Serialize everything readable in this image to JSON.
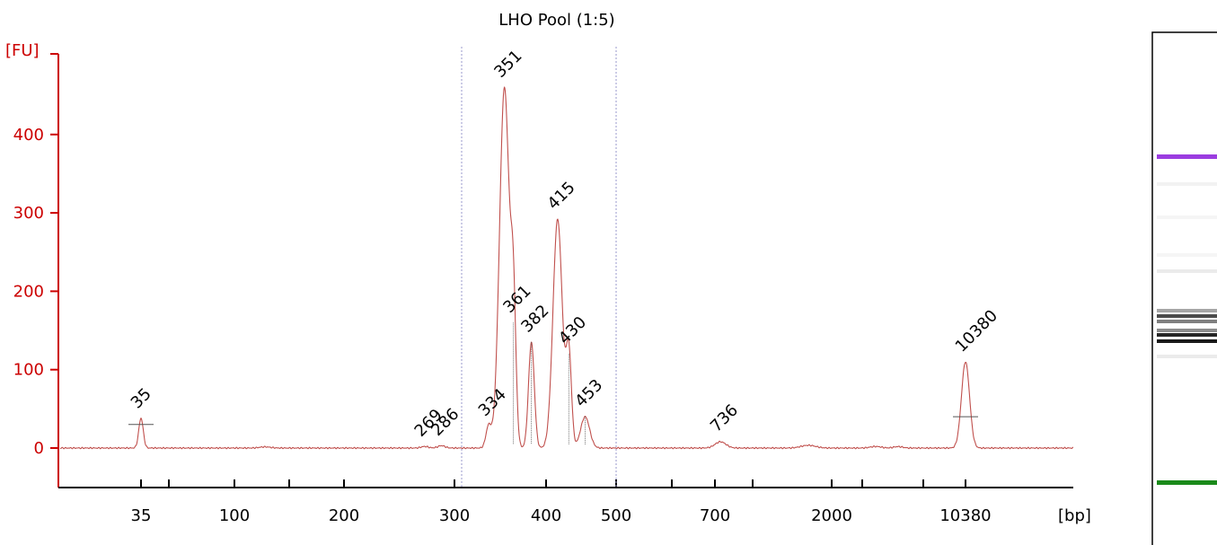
{
  "chart_data": {
    "type": "line",
    "title": "LHO Pool (1:5)",
    "ylabel": "[FU]",
    "xlabel": "[bp]",
    "ylim": [
      -50,
      500
    ],
    "yticks": [
      0,
      100,
      200,
      300,
      400
    ],
    "xtick_labels": [
      "35",
      "100",
      "200",
      "300",
      "400",
      "500",
      "700",
      "2000",
      "10380"
    ],
    "xtick_bp": [
      35,
      100,
      200,
      300,
      400,
      500,
      700,
      2000,
      10380
    ],
    "region_markers_bp": [
      310,
      500
    ],
    "series": [
      {
        "values": [
          {
            "bp": 35,
            "fu": 38
          },
          {
            "bp": 269,
            "fu": 2
          },
          {
            "bp": 286,
            "fu": 3
          },
          {
            "bp": 334,
            "fu": 28
          },
          {
            "bp": 351,
            "fu": 460
          },
          {
            "bp": 361,
            "fu": 160
          },
          {
            "bp": 382,
            "fu": 135
          },
          {
            "bp": 415,
            "fu": 292
          },
          {
            "bp": 430,
            "fu": 120
          },
          {
            "bp": 453,
            "fu": 40
          },
          {
            "bp": 736,
            "fu": 8
          },
          {
            "bp": 10380,
            "fu": 110
          }
        ]
      }
    ],
    "peak_labels": [
      {
        "label": "35",
        "bp": 35,
        "fu": 38,
        "color": "#1a8a1a"
      },
      {
        "label": "269",
        "bp": 269,
        "fu": 2,
        "color": "#000000"
      },
      {
        "label": "286",
        "bp": 286,
        "fu": 3,
        "color": "#000000"
      },
      {
        "label": "334",
        "bp": 334,
        "fu": 28,
        "color": "#000000"
      },
      {
        "label": "351",
        "bp": 351,
        "fu": 460,
        "color": "#000000"
      },
      {
        "label": "361",
        "bp": 361,
        "fu": 160,
        "color": "#000000"
      },
      {
        "label": "382",
        "bp": 382,
        "fu": 135,
        "color": "#000000"
      },
      {
        "label": "415",
        "bp": 415,
        "fu": 292,
        "color": "#000000"
      },
      {
        "label": "430",
        "bp": 430,
        "fu": 120,
        "color": "#000000"
      },
      {
        "label": "453",
        "bp": 453,
        "fu": 40,
        "color": "#000000"
      },
      {
        "label": "736",
        "bp": 736,
        "fu": 8,
        "color": "#000000"
      },
      {
        "label": "10380",
        "bp": 10380,
        "fu": 110,
        "color": "#9b3de0"
      }
    ],
    "gel_markers": [
      {
        "name": "upper marker",
        "bp": 10380,
        "color": "#9b3de0"
      },
      {
        "name": "lower marker",
        "bp": 35,
        "color": "#1a8a1a"
      }
    ],
    "gel_bands_bp": [
      300,
      334,
      351,
      382,
      415,
      430,
      1000
    ],
    "colors": {
      "axis": "#cc0000",
      "trace": "#c0504d",
      "gridline": "#9999cc"
    }
  }
}
